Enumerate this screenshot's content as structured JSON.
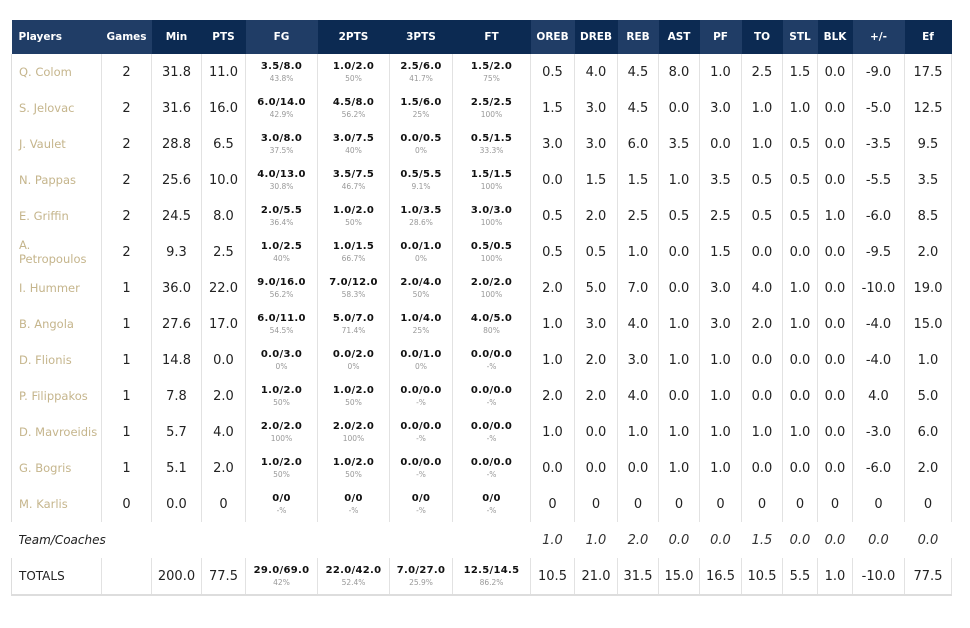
{
  "headers": [
    "Players",
    "Games",
    "Min",
    "PTS",
    "FG",
    "2PTS",
    "3PTS",
    "FT",
    "OREB",
    "DREB",
    "REB",
    "AST",
    "PF",
    "TO",
    "STL",
    "BLK",
    "+/-",
    "Ef"
  ],
  "players": [
    {
      "name": "Q. Colom",
      "games": "2",
      "min": "31.8",
      "pts": "11.0",
      "fg": [
        "3.5/8.0",
        "43.8%"
      ],
      "p2": [
        "1.0/2.0",
        "50%"
      ],
      "p3": [
        "2.5/6.0",
        "41.7%"
      ],
      "ft": [
        "1.5/2.0",
        "75%"
      ],
      "rest": [
        "0.5",
        "4.0",
        "4.5",
        "8.0",
        "1.0",
        "2.5",
        "1.5",
        "0.0",
        "-9.0",
        "17.5"
      ]
    },
    {
      "name": "S. Jelovac",
      "games": "2",
      "min": "31.6",
      "pts": "16.0",
      "fg": [
        "6.0/14.0",
        "42.9%"
      ],
      "p2": [
        "4.5/8.0",
        "56.2%"
      ],
      "p3": [
        "1.5/6.0",
        "25%"
      ],
      "ft": [
        "2.5/2.5",
        "100%"
      ],
      "rest": [
        "1.5",
        "3.0",
        "4.5",
        "0.0",
        "3.0",
        "1.0",
        "1.0",
        "0.0",
        "-5.0",
        "12.5"
      ]
    },
    {
      "name": "J. Vaulet",
      "games": "2",
      "min": "28.8",
      "pts": "6.5",
      "fg": [
        "3.0/8.0",
        "37.5%"
      ],
      "p2": [
        "3.0/7.5",
        "40%"
      ],
      "p3": [
        "0.0/0.5",
        "0%"
      ],
      "ft": [
        "0.5/1.5",
        "33.3%"
      ],
      "rest": [
        "3.0",
        "3.0",
        "6.0",
        "3.5",
        "0.0",
        "1.0",
        "0.5",
        "0.0",
        "-3.5",
        "9.5"
      ]
    },
    {
      "name": "N. Pappas",
      "games": "2",
      "min": "25.6",
      "pts": "10.0",
      "fg": [
        "4.0/13.0",
        "30.8%"
      ],
      "p2": [
        "3.5/7.5",
        "46.7%"
      ],
      "p3": [
        "0.5/5.5",
        "9.1%"
      ],
      "ft": [
        "1.5/1.5",
        "100%"
      ],
      "rest": [
        "0.0",
        "1.5",
        "1.5",
        "1.0",
        "3.5",
        "0.5",
        "0.5",
        "0.0",
        "-5.5",
        "3.5"
      ]
    },
    {
      "name": "E. Griffin",
      "games": "2",
      "min": "24.5",
      "pts": "8.0",
      "fg": [
        "2.0/5.5",
        "36.4%"
      ],
      "p2": [
        "1.0/2.0",
        "50%"
      ],
      "p3": [
        "1.0/3.5",
        "28.6%"
      ],
      "ft": [
        "3.0/3.0",
        "100%"
      ],
      "rest": [
        "0.5",
        "2.0",
        "2.5",
        "0.5",
        "2.5",
        "0.5",
        "0.5",
        "1.0",
        "-6.0",
        "8.5"
      ]
    },
    {
      "name": "A. Petropoulos",
      "games": "2",
      "min": "9.3",
      "pts": "2.5",
      "fg": [
        "1.0/2.5",
        "40%"
      ],
      "p2": [
        "1.0/1.5",
        "66.7%"
      ],
      "p3": [
        "0.0/1.0",
        "0%"
      ],
      "ft": [
        "0.5/0.5",
        "100%"
      ],
      "rest": [
        "0.5",
        "0.5",
        "1.0",
        "0.0",
        "1.5",
        "0.0",
        "0.0",
        "0.0",
        "-9.5",
        "2.0"
      ]
    },
    {
      "name": "I. Hummer",
      "games": "1",
      "min": "36.0",
      "pts": "22.0",
      "fg": [
        "9.0/16.0",
        "56.2%"
      ],
      "p2": [
        "7.0/12.0",
        "58.3%"
      ],
      "p3": [
        "2.0/4.0",
        "50%"
      ],
      "ft": [
        "2.0/2.0",
        "100%"
      ],
      "rest": [
        "2.0",
        "5.0",
        "7.0",
        "0.0",
        "3.0",
        "4.0",
        "1.0",
        "0.0",
        "-10.0",
        "19.0"
      ]
    },
    {
      "name": "B. Angola",
      "games": "1",
      "min": "27.6",
      "pts": "17.0",
      "fg": [
        "6.0/11.0",
        "54.5%"
      ],
      "p2": [
        "5.0/7.0",
        "71.4%"
      ],
      "p3": [
        "1.0/4.0",
        "25%"
      ],
      "ft": [
        "4.0/5.0",
        "80%"
      ],
      "rest": [
        "1.0",
        "3.0",
        "4.0",
        "1.0",
        "3.0",
        "2.0",
        "1.0",
        "0.0",
        "-4.0",
        "15.0"
      ]
    },
    {
      "name": "D. Flionis",
      "games": "1",
      "min": "14.8",
      "pts": "0.0",
      "fg": [
        "0.0/3.0",
        "0%"
      ],
      "p2": [
        "0.0/2.0",
        "0%"
      ],
      "p3": [
        "0.0/1.0",
        "0%"
      ],
      "ft": [
        "0.0/0.0",
        "-%"
      ],
      "rest": [
        "1.0",
        "2.0",
        "3.0",
        "1.0",
        "1.0",
        "0.0",
        "0.0",
        "0.0",
        "-4.0",
        "1.0"
      ]
    },
    {
      "name": "P. Filippakos",
      "games": "1",
      "min": "7.8",
      "pts": "2.0",
      "fg": [
        "1.0/2.0",
        "50%"
      ],
      "p2": [
        "1.0/2.0",
        "50%"
      ],
      "p3": [
        "0.0/0.0",
        "-%"
      ],
      "ft": [
        "0.0/0.0",
        "-%"
      ],
      "rest": [
        "2.0",
        "2.0",
        "4.0",
        "0.0",
        "1.0",
        "0.0",
        "0.0",
        "0.0",
        "4.0",
        "5.0"
      ]
    },
    {
      "name": "D. Mavroeidis",
      "games": "1",
      "min": "5.7",
      "pts": "4.0",
      "fg": [
        "2.0/2.0",
        "100%"
      ],
      "p2": [
        "2.0/2.0",
        "100%"
      ],
      "p3": [
        "0.0/0.0",
        "-%"
      ],
      "ft": [
        "0.0/0.0",
        "-%"
      ],
      "rest": [
        "1.0",
        "0.0",
        "1.0",
        "1.0",
        "1.0",
        "1.0",
        "1.0",
        "0.0",
        "-3.0",
        "6.0"
      ]
    },
    {
      "name": "G. Bogris",
      "games": "1",
      "min": "5.1",
      "pts": "2.0",
      "fg": [
        "1.0/2.0",
        "50%"
      ],
      "p2": [
        "1.0/2.0",
        "50%"
      ],
      "p3": [
        "0.0/0.0",
        "-%"
      ],
      "ft": [
        "0.0/0.0",
        "-%"
      ],
      "rest": [
        "0.0",
        "0.0",
        "0.0",
        "1.0",
        "1.0",
        "0.0",
        "0.0",
        "0.0",
        "-6.0",
        "2.0"
      ]
    },
    {
      "name": "M. Karlis",
      "games": "0",
      "min": "0.0",
      "pts": "0",
      "fg": [
        "0/0",
        "-%"
      ],
      "p2": [
        "0/0",
        "-%"
      ],
      "p3": [
        "0/0",
        "-%"
      ],
      "ft": [
        "0/0",
        "-%"
      ],
      "rest": [
        "0",
        "0",
        "0",
        "0",
        "0",
        "0",
        "0",
        "0",
        "0",
        "0"
      ]
    }
  ],
  "team": {
    "name": "Team/Coaches",
    "rest": [
      "1.0",
      "1.0",
      "2.0",
      "0.0",
      "0.0",
      "1.5",
      "0.0",
      "0.0",
      "0.0",
      "0.0"
    ]
  },
  "totals": {
    "name": "TOTALS",
    "games": "",
    "min": "200.0",
    "pts": "77.5",
    "fg": [
      "29.0/69.0",
      "42%"
    ],
    "p2": [
      "22.0/42.0",
      "52.4%"
    ],
    "p3": [
      "7.0/27.0",
      "25.9%"
    ],
    "ft": [
      "12.5/14.5",
      "86.2%"
    ],
    "rest": [
      "10.5",
      "21.0",
      "31.5",
      "15.0",
      "16.5",
      "10.5",
      "5.5",
      "1.0",
      "-10.0",
      "77.5"
    ]
  }
}
